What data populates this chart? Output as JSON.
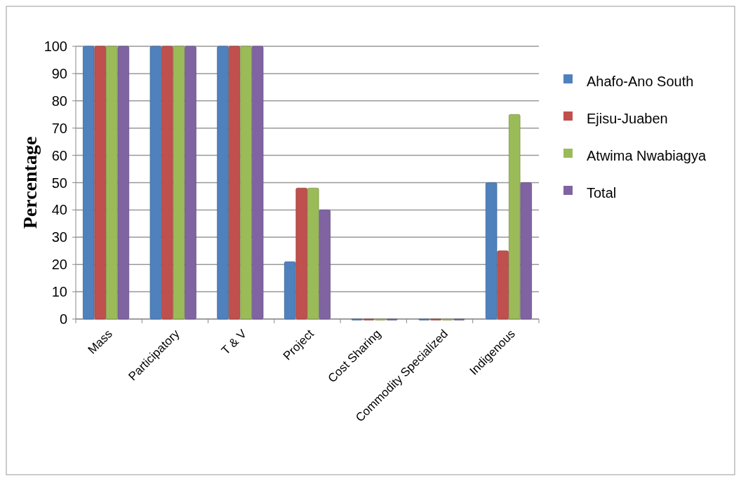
{
  "chart_data": {
    "type": "bar",
    "ylabel": "Percentage",
    "categories": [
      "Mass",
      "Participatory",
      "T & V",
      "Project",
      "Cost Sharing",
      "Commodity Specialized",
      "Indigenous"
    ],
    "series": [
      {
        "name": "Ahafo-Ano South",
        "color": "#4f81bd",
        "values": [
          100,
          100,
          100,
          21,
          0,
          0,
          50
        ]
      },
      {
        "name": "Ejisu-Juaben",
        "color": "#c0504d",
        "values": [
          100,
          100,
          100,
          48,
          0,
          0,
          25
        ]
      },
      {
        "name": "Atwima Nwabiagya",
        "color": "#9bbb59",
        "values": [
          100,
          100,
          100,
          48,
          0,
          0,
          75
        ]
      },
      {
        "name": "Total",
        "color": "#8064a2",
        "values": [
          100,
          100,
          100,
          40,
          0,
          0,
          50
        ]
      }
    ],
    "ylim": [
      0,
      100
    ],
    "yticks": [
      0,
      10,
      20,
      30,
      40,
      50,
      60,
      70,
      80,
      90,
      100
    ],
    "grid": "y",
    "legend": "right"
  }
}
